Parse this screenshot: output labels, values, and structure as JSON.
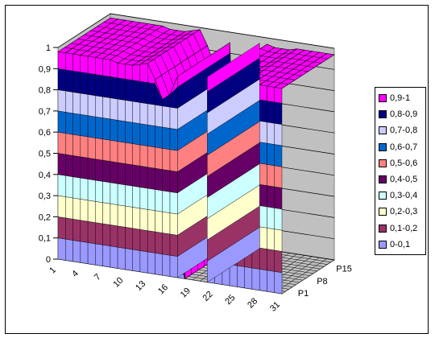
{
  "chart_data": {
    "type": "area",
    "subtype": "3d-surface",
    "title": "",
    "xlabel": "",
    "ylabel": "",
    "zlim": [
      0,
      1
    ],
    "z_ticks": [
      "0",
      "0,1",
      "0,2",
      "0,3",
      "0,4",
      "0,5",
      "0,6",
      "0,7",
      "0,8",
      "0,9",
      "1"
    ],
    "x_tick_labels": [
      "1",
      "4",
      "7",
      "10",
      "13",
      "16",
      "19",
      "22",
      "25",
      "28",
      "31"
    ],
    "x_values": [
      1,
      2,
      3,
      4,
      5,
      6,
      7,
      8,
      9,
      10,
      11,
      12,
      13,
      14,
      15,
      16,
      17,
      18,
      19,
      20,
      21,
      22,
      23,
      24,
      25,
      26,
      27,
      28,
      29,
      30,
      31
    ],
    "series_tick_labels": [
      "P1",
      "P8",
      "P15"
    ],
    "surface_front_values": [
      0.98,
      0.98,
      0.98,
      0.98,
      0.98,
      0.98,
      0.98,
      0.98,
      0.97,
      0.97,
      0.97,
      0.98,
      0.99,
      0.92,
      0.83,
      0.86,
      0.95,
      0.0,
      0.0,
      0.0,
      0.0,
      0.97,
      0.96,
      0.96,
      0.96,
      0.97,
      0.97,
      0.97,
      0.97,
      0.97,
      0.97
    ],
    "grid": true,
    "legend_position": "right",
    "legend": [
      {
        "label": "0,9-1",
        "color": "#ff00ff"
      },
      {
        "label": "0,8-0,9",
        "color": "#000080"
      },
      {
        "label": "0,7-0,8",
        "color": "#ccccff"
      },
      {
        "label": "0,6-0,7",
        "color": "#0066cc"
      },
      {
        "label": "0,5-0,6",
        "color": "#ff8080"
      },
      {
        "label": "0,4-0,5",
        "color": "#660066"
      },
      {
        "label": "0,3-0,4",
        "color": "#ccffff"
      },
      {
        "label": "0,2-0,3",
        "color": "#ffffcc"
      },
      {
        "label": "0,1-0,2",
        "color": "#993366"
      },
      {
        "label": "0-0,1",
        "color": "#9999ff"
      }
    ]
  }
}
